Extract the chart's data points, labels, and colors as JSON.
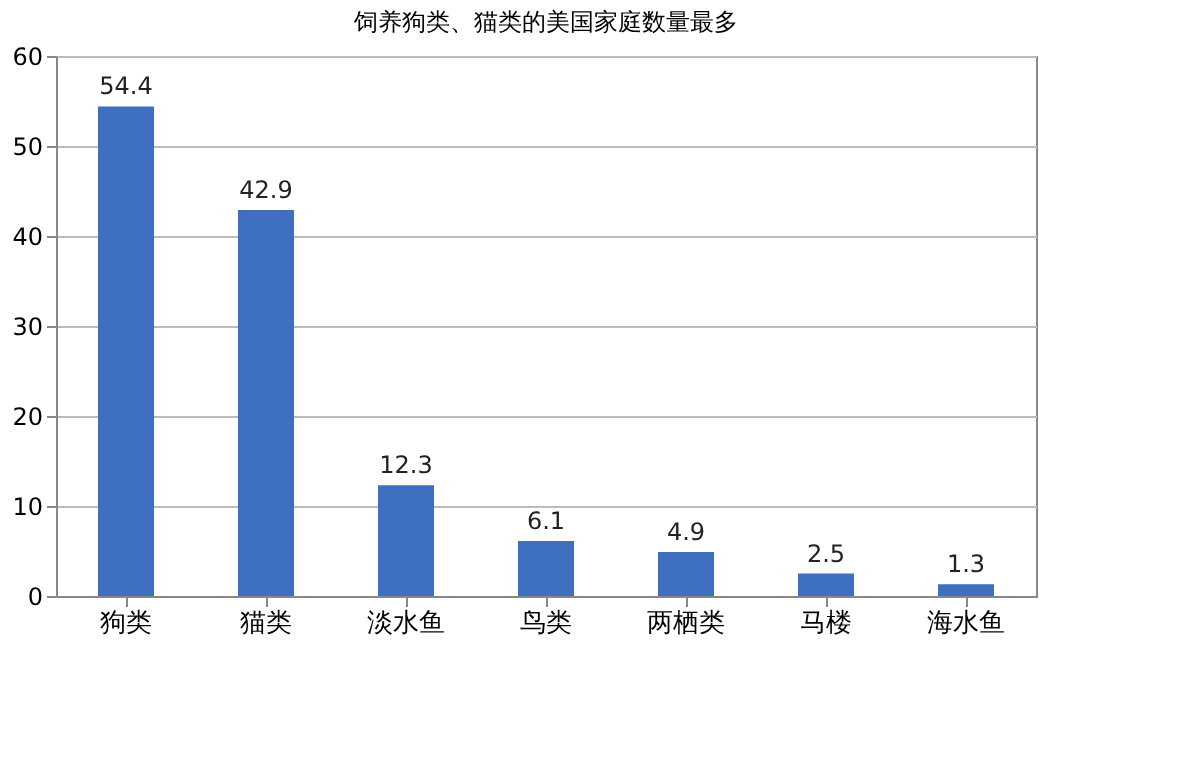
{
  "chart_data": {
    "type": "bar",
    "title": "饲养狗类、猫类的美国家庭数量最多",
    "categories": [
      "狗类",
      "猫类",
      "淡水鱼",
      "鸟类",
      "两栖类",
      "马楼",
      "海水鱼"
    ],
    "values": [
      54.4,
      42.9,
      12.3,
      6.1,
      4.9,
      2.5,
      1.3
    ],
    "color": "#3f6fbf",
    "ylim": [
      0,
      60
    ],
    "yticks": [
      0,
      10,
      20,
      30,
      40,
      50,
      60
    ],
    "grid": "y",
    "data_labels": true
  }
}
